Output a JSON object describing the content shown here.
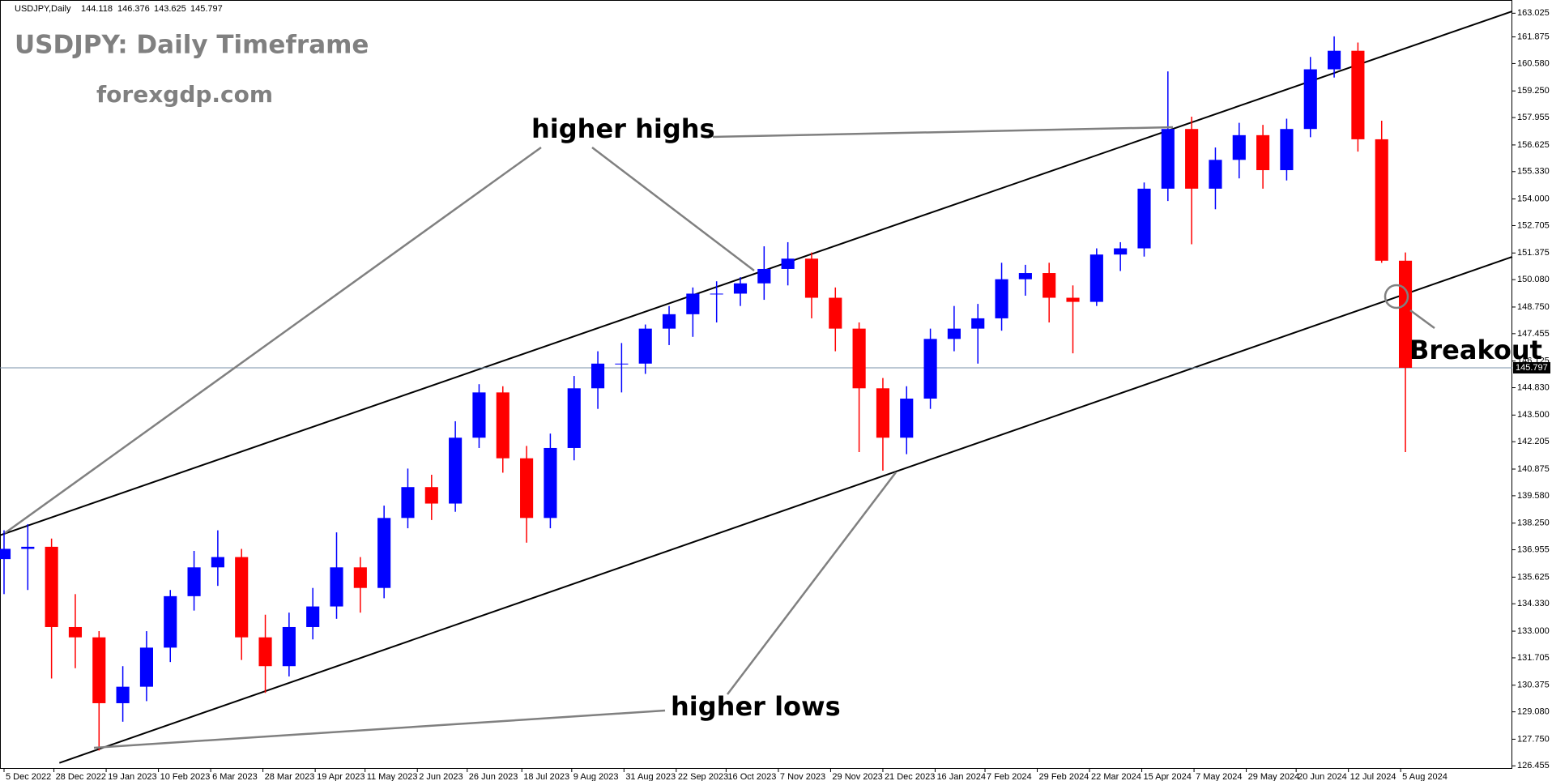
{
  "chart_data": {
    "type": "candlestick",
    "header": "USDJPY,Daily",
    "header_values": [
      144.118,
      146.376,
      143.625,
      145.797
    ],
    "title": "USDJPY: Daily Timeframe",
    "subtitle": "forexgdp.com",
    "annotations": [
      "higher highs",
      "higher lows",
      "Breakout"
    ],
    "up_color": "#0000ff",
    "down_color": "#ff0000",
    "open": [
      136.5,
      137.0,
      137.1,
      133.2,
      132.7,
      129.5,
      130.3,
      132.2,
      134.7,
      136.1,
      136.6,
      132.7,
      131.3,
      133.2,
      134.2,
      136.1,
      135.1,
      138.5,
      140.0,
      139.2,
      142.4,
      144.6,
      141.4,
      138.5,
      141.9,
      144.8,
      146.0,
      146.0,
      147.7,
      148.4,
      149.4,
      149.4,
      149.9,
      150.6,
      151.1,
      149.2,
      147.7,
      144.8,
      142.4,
      144.3,
      147.2,
      147.7,
      148.2,
      150.1,
      150.4,
      149.2,
      149.0,
      151.3,
      151.6,
      154.5,
      157.4,
      154.5,
      155.9,
      157.1,
      155.4,
      157.4,
      160.3,
      161.2,
      156.9,
      151.0
    ],
    "high": [
      137.9,
      138.2,
      137.5,
      134.8,
      133.0,
      131.3,
      133.0,
      135.0,
      136.9,
      137.9,
      137.0,
      133.8,
      133.9,
      135.1,
      137.8,
      136.6,
      139.1,
      140.9,
      140.6,
      143.2,
      145.0,
      144.9,
      142.0,
      142.6,
      145.4,
      146.6,
      147.0,
      147.9,
      148.8,
      149.7,
      150.0,
      150.2,
      151.7,
      151.9,
      151.4,
      149.7,
      148.0,
      145.3,
      144.9,
      147.7,
      148.8,
      148.9,
      150.9,
      150.8,
      150.9,
      149.8,
      151.6,
      151.9,
      154.8,
      160.2,
      158.0,
      156.5,
      157.7,
      157.6,
      157.9,
      160.9,
      161.9,
      161.6,
      157.8,
      151.4
    ],
    "low": [
      134.8,
      135.0,
      130.7,
      131.2,
      127.2,
      128.6,
      129.6,
      131.5,
      134.0,
      135.2,
      131.6,
      130.0,
      130.8,
      132.6,
      133.6,
      133.9,
      134.6,
      138.0,
      138.4,
      138.8,
      141.9,
      140.7,
      137.3,
      138.0,
      141.3,
      143.8,
      144.6,
      145.5,
      146.9,
      147.3,
      148.0,
      148.8,
      149.1,
      149.8,
      148.2,
      146.6,
      141.7,
      140.8,
      141.6,
      143.8,
      146.6,
      146.0,
      147.6,
      149.3,
      148.0,
      146.5,
      148.8,
      150.5,
      151.2,
      153.9,
      151.8,
      153.5,
      155.0,
      154.5,
      154.9,
      157.0,
      159.9,
      156.3,
      150.9,
      141.7
    ],
    "close": [
      137.0,
      137.1,
      133.2,
      132.7,
      129.5,
      130.3,
      132.2,
      134.7,
      136.1,
      136.6,
      132.7,
      131.3,
      133.2,
      134.2,
      136.1,
      135.1,
      138.5,
      140.0,
      139.2,
      142.4,
      144.6,
      141.4,
      138.5,
      141.9,
      144.8,
      146.0,
      146.0,
      147.7,
      148.4,
      149.4,
      149.4,
      149.9,
      150.6,
      151.1,
      149.2,
      147.7,
      144.8,
      142.4,
      144.3,
      147.2,
      147.7,
      148.2,
      150.1,
      150.4,
      149.2,
      149.0,
      151.3,
      151.6,
      154.5,
      157.4,
      154.5,
      155.9,
      157.1,
      155.4,
      157.4,
      160.3,
      161.2,
      156.9,
      151.0,
      145.797
    ],
    "current_price": 145.797,
    "trendlines": [
      {
        "x": [
          -0.17,
          63.5
        ],
        "y": [
          137.66,
          163.12
        ]
      },
      {
        "x": [
          2.33,
          63.5
        ],
        "y": [
          126.6,
          151.19
        ]
      }
    ],
    "xlim": [
      -0.17,
      63.5
    ],
    "ylim": [
      126.31,
      163.51
    ],
    "yticks": [
      163.025,
      161.875,
      {
        "value": 160.58,
        "label": "160.580"
      },
      {
        "value": 159.25,
        "label": "159.250"
      },
      157.955,
      156.625,
      {
        "value": 155.33,
        "label": "155.330"
      },
      {
        "value": 154,
        "label": "154.000"
      },
      152.705,
      151.375,
      {
        "value": 150.08,
        "label": "150.080"
      },
      {
        "value": 148.75,
        "label": "148.750"
      },
      147.455,
      146.125,
      {
        "value": 144.83,
        "label": "144.830"
      },
      {
        "value": 143.5,
        "label": "143.500"
      },
      142.205,
      140.875,
      {
        "value": 139.58,
        "label": "139.580"
      },
      {
        "value": 138.25,
        "label": "138.250"
      },
      136.955,
      135.625,
      {
        "value": 134.33,
        "label": "134.330"
      },
      {
        "value": 133,
        "label": "133.000"
      },
      131.705,
      130.375,
      {
        "value": 129.08,
        "label": "129.080"
      },
      {
        "value": 127.75,
        "label": "127.750"
      },
      126.455
    ],
    "xticks": [
      {
        "value": 0,
        "label": "5 Dec 2022"
      },
      {
        "value": 2.1,
        "label": "28 Dec 2022"
      },
      {
        "value": 4.3,
        "label": "19 Jan 2023"
      },
      {
        "value": 6.5,
        "label": "10 Feb 2023"
      },
      {
        "value": 8.7,
        "label": "6 Mar 2023"
      },
      {
        "value": 10.9,
        "label": "28 Mar 2023"
      },
      {
        "value": 13.1,
        "label": "19 Apr 2023"
      },
      {
        "value": 15.2,
        "label": "11 May 2023"
      },
      {
        "value": 17.4,
        "label": "2 Jun 2023"
      },
      {
        "value": 19.5,
        "label": "26 Jun 2023"
      },
      {
        "value": 21.8,
        "label": "18 Jul 2023"
      },
      {
        "value": 23.9,
        "label": "9 Aug 2023"
      },
      {
        "value": 26.1,
        "label": "31 Aug 2023"
      },
      {
        "value": 28.3,
        "label": "22 Sep 2023"
      },
      {
        "value": 30.4,
        "label": "16 Oct 2023"
      },
      {
        "value": 32.6,
        "label": "7 Nov 2023"
      },
      {
        "value": 34.8,
        "label": "29 Nov 2023"
      },
      {
        "value": 37.0,
        "label": "21 Dec 2023"
      },
      {
        "value": 39.2,
        "label": "16 Jan 2024"
      },
      {
        "value": 41.3,
        "label": "7 Feb 2024"
      },
      {
        "value": 43.5,
        "label": "29 Feb 2024"
      },
      {
        "value": 45.7,
        "label": "22 Mar 2024"
      },
      {
        "value": 47.9,
        "label": "15 Apr 2024"
      },
      {
        "value": 50.1,
        "label": "7 May 2024"
      },
      {
        "value": 52.3,
        "label": "29 May 2024"
      },
      {
        "value": 54.4,
        "label": "20 Jun 2024"
      },
      {
        "value": 56.6,
        "label": "12 Jul 2024"
      },
      {
        "value": 58.8,
        "label": "5 Aug 2024"
      }
    ]
  }
}
